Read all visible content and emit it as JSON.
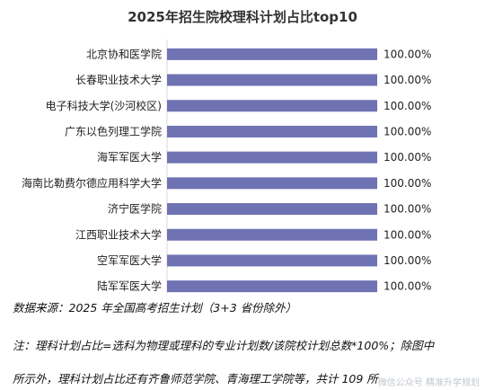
{
  "chart_data": {
    "type": "bar",
    "orientation": "horizontal",
    "title": "2025年招生院校理科计划占比top10",
    "categories": [
      "北京协和医学院",
      "长春职业技术大学",
      "电子科技大学(沙河校区)",
      "广东以色列理工学院",
      "海军军医大学",
      "海南比勒费尔德应用科学大学",
      "济宁医学院",
      "江西职业技术大学",
      "空军军医大学",
      "陆军军医大学"
    ],
    "values": [
      100,
      100,
      100,
      100,
      100,
      100,
      100,
      100,
      100,
      100
    ],
    "value_labels": [
      "100.00%",
      "100.00%",
      "100.00%",
      "100.00%",
      "100.00%",
      "100.00%",
      "100.00%",
      "100.00%",
      "100.00%",
      "100.00%"
    ],
    "xlim": [
      0,
      100
    ],
    "grid": false,
    "bar_color": "#6f73b3"
  },
  "notes": {
    "source": "数据来源：2025 年全国高考招生计划（3+3 省份除外）",
    "note_line1": "注：理科计划占比=选科为物理或理科的专业计划数/该院校计划总数*100%；除图中",
    "note_line2": "所示外，理科计划占比还有齐鲁师范学院、青海理工学院等，共计 109 所"
  },
  "watermark": {
    "corner_text": "微信公众号 精准升学规划"
  }
}
